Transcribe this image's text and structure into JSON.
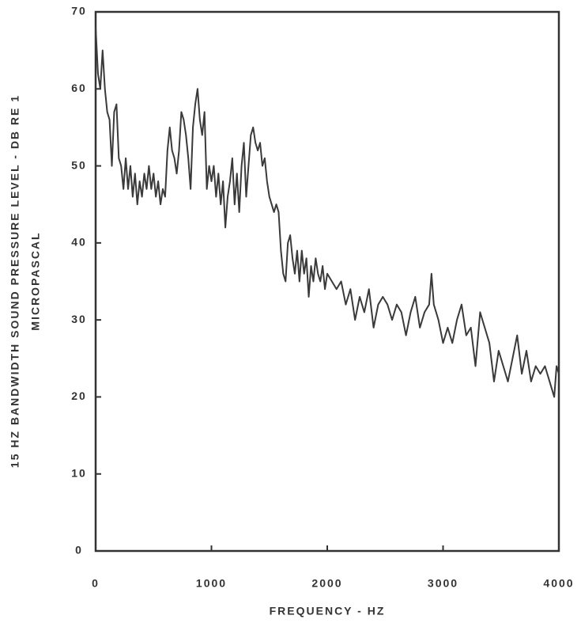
{
  "chart_data": {
    "type": "line",
    "x_label": "FREQUENCY - HZ",
    "y_label": [
      "15 HZ BANDWIDTH SOUND PRESSURE LEVEL - DB RE 1",
      "MICROPASCAL"
    ],
    "xlim": [
      0,
      4000
    ],
    "ylim": [
      0,
      70
    ],
    "xticks": [
      0,
      1000,
      2000,
      3000,
      4000
    ],
    "yticks": [
      0,
      10,
      20,
      30,
      40,
      50,
      60,
      70
    ],
    "grid": false,
    "color": "#3a3a3a",
    "x": [
      0,
      20,
      40,
      60,
      80,
      100,
      120,
      140,
      160,
      180,
      200,
      220,
      240,
      260,
      280,
      300,
      320,
      340,
      360,
      380,
      400,
      420,
      440,
      460,
      480,
      500,
      520,
      540,
      560,
      580,
      600,
      620,
      640,
      660,
      680,
      700,
      720,
      740,
      760,
      780,
      800,
      820,
      840,
      860,
      880,
      900,
      920,
      940,
      960,
      980,
      1000,
      1020,
      1040,
      1060,
      1080,
      1100,
      1120,
      1140,
      1160,
      1180,
      1200,
      1220,
      1240,
      1260,
      1280,
      1300,
      1320,
      1340,
      1360,
      1380,
      1400,
      1420,
      1440,
      1460,
      1480,
      1500,
      1520,
      1540,
      1560,
      1580,
      1600,
      1620,
      1640,
      1660,
      1680,
      1700,
      1720,
      1740,
      1760,
      1780,
      1800,
      1820,
      1840,
      1860,
      1880,
      1900,
      1920,
      1940,
      1960,
      1980,
      2000,
      2040,
      2080,
      2120,
      2160,
      2200,
      2240,
      2280,
      2320,
      2360,
      2400,
      2440,
      2480,
      2520,
      2560,
      2600,
      2640,
      2680,
      2720,
      2760,
      2800,
      2840,
      2880,
      2900,
      2920,
      2960,
      3000,
      3040,
      3080,
      3120,
      3160,
      3200,
      3240,
      3280,
      3320,
      3360,
      3400,
      3440,
      3480,
      3520,
      3560,
      3600,
      3640,
      3680,
      3720,
      3760,
      3800,
      3840,
      3880,
      3920,
      3960,
      3980,
      4000
    ],
    "values": [
      68,
      62,
      60,
      65,
      60,
      57,
      56,
      50,
      57,
      58,
      51,
      50,
      47,
      51,
      47,
      50,
      46,
      49,
      45,
      48,
      46,
      49,
      47,
      50,
      47,
      49,
      46,
      48,
      45,
      47,
      46,
      52,
      55,
      52,
      51,
      49,
      52,
      57,
      56,
      54,
      51,
      47,
      55,
      58,
      60,
      56,
      54,
      57,
      47,
      50,
      48,
      50,
      46,
      49,
      45,
      48,
      42,
      46,
      48,
      51,
      45,
      49,
      44,
      50,
      53,
      46,
      50,
      54,
      55,
      53,
      52,
      53,
      50,
      51,
      48,
      46,
      45,
      44,
      45,
      44,
      39,
      36,
      35,
      40,
      41,
      38,
      36,
      39,
      35,
      39,
      36,
      38,
      33,
      37,
      35,
      38,
      36,
      35,
      37,
      34,
      36,
      35,
      34,
      35,
      32,
      34,
      30,
      33,
      31,
      34,
      29,
      32,
      33,
      32,
      30,
      32,
      31,
      28,
      31,
      33,
      29,
      31,
      32,
      36,
      32,
      30,
      27,
      29,
      27,
      30,
      32,
      28,
      29,
      24,
      31,
      29,
      27,
      22,
      26,
      24,
      22,
      25,
      28,
      23,
      26,
      22,
      24,
      23,
      24,
      22,
      20,
      24,
      23
    ]
  }
}
